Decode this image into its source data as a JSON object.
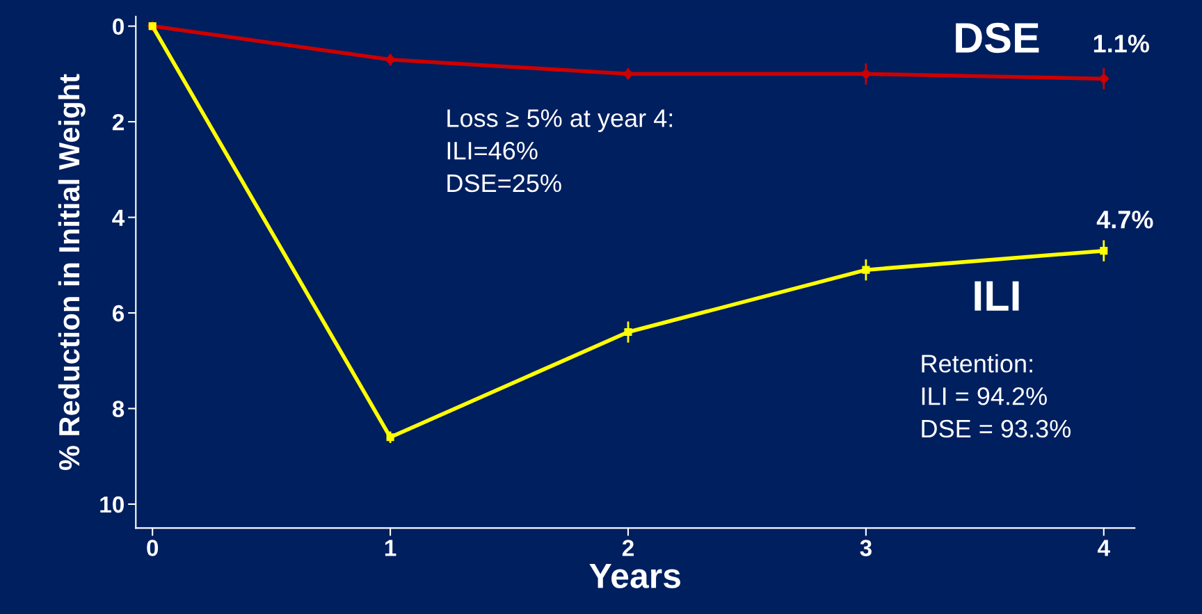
{
  "chart_data": {
    "type": "line",
    "xlabel": "Years",
    "ylabel": "% Reduction in Initial Weight",
    "x": [
      0,
      1,
      2,
      3,
      4
    ],
    "series": [
      {
        "name": "DSE",
        "color": "#cc0000",
        "marker": "diamond",
        "values": [
          0,
          0.7,
          1.0,
          1.0,
          1.1
        ],
        "errors": [
          null,
          0.1,
          0.1,
          0.2,
          0.2
        ]
      },
      {
        "name": "ILI",
        "color": "#ffff00",
        "marker": "square",
        "values": [
          0,
          8.6,
          6.4,
          5.1,
          4.7
        ],
        "errors": [
          null,
          0.1,
          0.2,
          0.2,
          0.2
        ]
      }
    ],
    "xlim": [
      -0.07,
      4.13
    ],
    "xticks": [
      0,
      1,
      2,
      3,
      4
    ],
    "ylim": [
      10.5,
      -0.2
    ],
    "yticks": [
      0,
      2,
      4,
      6,
      8,
      10
    ],
    "grid": false,
    "legend": false,
    "line_style": "solid",
    "annotations": [
      {
        "text": "1.1%",
        "x": 4,
        "y": 1.1
      },
      {
        "text": "4.7%",
        "x": 4,
        "y": 4.7
      },
      "Loss ≥ 5% at year 4:\nILI=46%\nDSE=25%",
      "Retention:\nILI = 94.2%\nDSE = 93.3%"
    ]
  }
}
